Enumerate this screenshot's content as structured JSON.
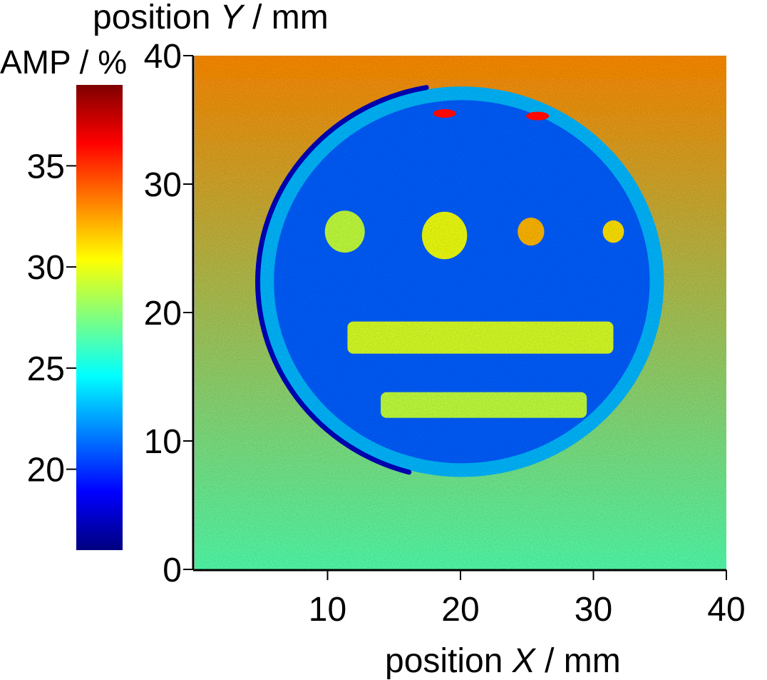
{
  "chart_data": {
    "type": "heatmap",
    "xlabel": {
      "prefix": "position ",
      "var": "X",
      "suffix": " / mm"
    },
    "ylabel": {
      "prefix": "position ",
      "var": "Y",
      "suffix": " / mm"
    },
    "xlim": [
      0,
      40
    ],
    "ylim": [
      0,
      40
    ],
    "xticks": [
      "10",
      "20",
      "30",
      "40"
    ],
    "yticks": [
      "0",
      "10",
      "20",
      "30",
      "40"
    ],
    "colorbar": {
      "title": "AMP / %",
      "range": [
        16,
        39
      ],
      "ticks": [
        "20",
        "25",
        "30",
        "35"
      ],
      "colormap": "jet"
    },
    "field": {
      "background": {
        "top_value": 33,
        "bottom_value": 26.5
      },
      "disc": {
        "center": [
          20.1,
          22.4
        ],
        "radius": 15.2,
        "value": 21,
        "rim_value": 23
      },
      "dark_arc": {
        "side": "left",
        "value": 17
      },
      "spots": [
        {
          "x": 11.3,
          "y": 26.3,
          "r": 1.5,
          "value": 29
        },
        {
          "x": 18.8,
          "y": 26.0,
          "r": 1.7,
          "value": 30
        },
        {
          "x": 25.3,
          "y": 26.3,
          "r": 1.0,
          "value": 32
        },
        {
          "x": 31.5,
          "y": 26.3,
          "r": 0.8,
          "value": 31
        }
      ],
      "bars": [
        {
          "x0": 11.5,
          "x1": 31.5,
          "y0": 16.8,
          "y1": 19.3,
          "value": 29.5
        },
        {
          "x0": 14.0,
          "x1": 29.5,
          "y0": 11.8,
          "y1": 13.8,
          "value": 29
        }
      ],
      "hot_marks": [
        {
          "x": 18.8,
          "y": 35.5,
          "value": 36
        },
        {
          "x": 25.8,
          "y": 35.3,
          "value": 36
        }
      ]
    }
  }
}
